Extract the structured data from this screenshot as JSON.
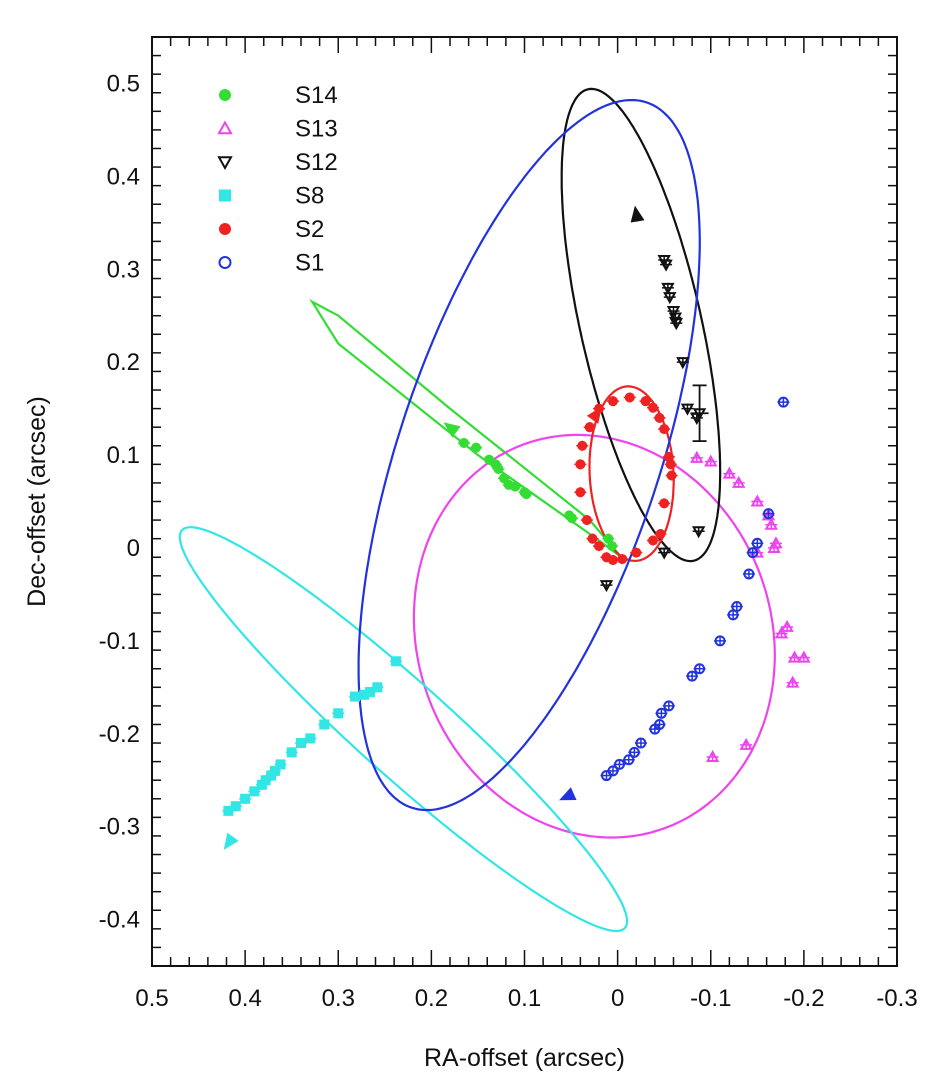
{
  "chart_data": {
    "type": "scatter",
    "title": "",
    "xlabel": "RA-offset (arcsec)",
    "ylabel": "Dec-offset (arcsec)",
    "xlim": [
      0.5,
      -0.3
    ],
    "ylim": [
      -0.45,
      0.55
    ],
    "x_ticks": [
      0.5,
      0.4,
      0.3,
      0.2,
      0.1,
      0,
      -0.1,
      -0.2,
      -0.3
    ],
    "x_tick_labels": [
      "0.5",
      "0.4",
      "0.3",
      "0.2",
      "0.1",
      "0",
      "-0.1",
      "-0.2",
      "-0.3"
    ],
    "y_ticks": [
      -0.4,
      -0.3,
      -0.2,
      -0.1,
      0,
      0.1,
      0.2,
      0.3,
      0.4,
      0.5
    ],
    "y_tick_labels": [
      "-0.4",
      "-0.3",
      "-0.2",
      "-0.1",
      "0",
      "0.1",
      "0.2",
      "0.3",
      "0.4",
      "0.5"
    ],
    "legend_position": "top-left",
    "series": [
      {
        "name": "S14",
        "color": "#33dd33",
        "marker": "circle-filled",
        "points": [
          [
            0.165,
            0.113
          ],
          [
            0.152,
            0.108
          ],
          [
            0.138,
            0.095
          ],
          [
            0.131,
            0.09
          ],
          [
            0.128,
            0.085
          ],
          [
            0.122,
            0.075
          ],
          [
            0.117,
            0.068
          ],
          [
            0.11,
            0.066
          ],
          [
            0.1,
            0.06
          ],
          [
            0.098,
            0.058
          ],
          [
            0.052,
            0.035
          ],
          [
            0.049,
            0.032
          ],
          [
            0.01,
            0.01
          ],
          [
            0.006,
            0.002
          ]
        ],
        "orbit": [
          [
            0.02,
            0.008
          ],
          [
            -0.004,
            -0.01
          ],
          [
            0.03,
            0.03
          ],
          [
            0.18,
            0.15
          ],
          [
            0.3,
            0.25
          ],
          [
            0.328,
            0.265
          ],
          [
            0.3,
            0.22
          ],
          [
            0.15,
            0.1
          ],
          [
            0.02,
            0.008
          ]
        ],
        "arrows": [
          {
            "at": [
              0.18,
              0.13
            ],
            "toward": [
              0.2,
              0.145
            ]
          }
        ]
      },
      {
        "name": "S13",
        "color": "#ee44ee",
        "marker": "triangle-open",
        "points": [
          [
            -0.085,
            0.097
          ],
          [
            -0.1,
            0.093
          ],
          [
            -0.12,
            0.08
          ],
          [
            -0.13,
            0.07
          ],
          [
            -0.15,
            0.05
          ],
          [
            -0.162,
            0.035
          ],
          [
            -0.165,
            0.025
          ],
          [
            -0.17,
            0.005
          ],
          [
            -0.168,
            0.0
          ],
          [
            -0.15,
            -0.005
          ],
          [
            -0.182,
            -0.085
          ],
          [
            -0.176,
            -0.092
          ],
          [
            -0.19,
            -0.118
          ],
          [
            -0.2,
            -0.118
          ],
          [
            -0.188,
            -0.145
          ],
          [
            -0.138,
            -0.212
          ],
          [
            -0.102,
            -0.225
          ]
        ],
        "orbit_ellipse": {
          "cx": 0.025,
          "cy": -0.095,
          "rx": 0.19,
          "ry": 0.22,
          "rot": -0.35
        }
      },
      {
        "name": "S12",
        "color": "#111111",
        "marker": "triangle-down-open",
        "points": [
          [
            -0.05,
            0.31
          ],
          [
            -0.052,
            0.305
          ],
          [
            -0.054,
            0.28
          ],
          [
            -0.056,
            0.27
          ],
          [
            -0.06,
            0.255
          ],
          [
            -0.062,
            0.248
          ],
          [
            -0.063,
            0.242
          ],
          [
            -0.07,
            0.2
          ],
          [
            -0.075,
            0.15
          ],
          [
            -0.085,
            0.14
          ],
          [
            -0.087,
            0.018
          ],
          [
            -0.05,
            -0.005
          ],
          [
            0.012,
            -0.04
          ]
        ],
        "error_bars": [
          [
            -0.088,
            0.145,
            0.03
          ]
        ],
        "orbit_ellipse": {
          "cx": -0.025,
          "cy": 0.24,
          "rx": 0.065,
          "ry": 0.26,
          "rot": -0.22
        },
        "arrows": [
          {
            "at": [
              -0.02,
              0.36
            ],
            "toward": [
              -0.015,
              0.39
            ]
          }
        ]
      },
      {
        "name": "S8",
        "color": "#33e6e6",
        "marker": "square-filled",
        "points": [
          [
            0.238,
            -0.122
          ],
          [
            0.258,
            -0.15
          ],
          [
            0.266,
            -0.155
          ],
          [
            0.272,
            -0.158
          ],
          [
            0.282,
            -0.16
          ],
          [
            0.3,
            -0.178
          ],
          [
            0.315,
            -0.19
          ],
          [
            0.33,
            -0.205
          ],
          [
            0.34,
            -0.21
          ],
          [
            0.35,
            -0.22
          ],
          [
            0.362,
            -0.233
          ],
          [
            0.368,
            -0.24
          ],
          [
            0.372,
            -0.245
          ],
          [
            0.378,
            -0.25
          ],
          [
            0.382,
            -0.255
          ],
          [
            0.39,
            -0.262
          ],
          [
            0.4,
            -0.27
          ],
          [
            0.41,
            -0.278
          ],
          [
            0.418,
            -0.283
          ]
        ],
        "orbit_ellipse": {
          "cx": 0.23,
          "cy": -0.195,
          "rx": 0.32,
          "ry": 0.05,
          "rot": 0.733
        },
        "arrows": [
          {
            "at": [
              0.418,
              -0.318
            ],
            "toward": [
              0.43,
              -0.335
            ]
          }
        ]
      },
      {
        "name": "S2",
        "color": "#ee2222",
        "marker": "circle-filled",
        "points": [
          [
            -0.013,
            0.162
          ],
          [
            -0.03,
            0.158
          ],
          [
            -0.038,
            0.151
          ],
          [
            -0.045,
            0.14
          ],
          [
            -0.05,
            0.128
          ],
          [
            -0.055,
            0.098
          ],
          [
            -0.057,
            0.09
          ],
          [
            -0.058,
            0.078
          ],
          [
            -0.05,
            0.048
          ],
          [
            -0.046,
            0.015
          ],
          [
            -0.038,
            0.008
          ],
          [
            -0.02,
            -0.005
          ],
          [
            -0.005,
            -0.012
          ],
          [
            0.005,
            -0.013
          ],
          [
            0.012,
            -0.01
          ],
          [
            0.02,
            0.002
          ],
          [
            0.027,
            0.01
          ],
          [
            0.033,
            0.03
          ],
          [
            0.04,
            0.06
          ],
          [
            0.04,
            0.09
          ],
          [
            0.038,
            0.11
          ],
          [
            0.03,
            0.13
          ],
          [
            0.02,
            0.15
          ],
          [
            0.005,
            0.158
          ]
        ],
        "orbit_ellipse": {
          "cx": -0.015,
          "cy": 0.08,
          "rx": 0.045,
          "ry": 0.094,
          "rot": -0.05
        },
        "arrows": [
          {
            "at": [
              0.022,
              0.145
            ],
            "toward": [
              0.015,
              0.155
            ]
          }
        ]
      },
      {
        "name": "S1",
        "color": "#2233dd",
        "marker": "circle-open",
        "points": [
          [
            -0.178,
            0.157
          ],
          [
            -0.162,
            0.037
          ],
          [
            -0.15,
            0.005
          ],
          [
            -0.145,
            -0.005
          ],
          [
            -0.141,
            -0.028
          ],
          [
            -0.128,
            -0.063
          ],
          [
            -0.124,
            -0.072
          ],
          [
            -0.11,
            -0.1
          ],
          [
            -0.088,
            -0.13
          ],
          [
            -0.08,
            -0.138
          ],
          [
            -0.055,
            -0.17
          ],
          [
            -0.047,
            -0.178
          ],
          [
            -0.045,
            -0.19
          ],
          [
            -0.04,
            -0.195
          ],
          [
            -0.025,
            -0.21
          ],
          [
            -0.018,
            -0.22
          ],
          [
            -0.012,
            -0.228
          ],
          [
            -0.002,
            -0.233
          ],
          [
            0.005,
            -0.24
          ],
          [
            0.012,
            -0.245
          ]
        ],
        "orbit_ellipse": {
          "cx": 0.095,
          "cy": 0.1,
          "rx": 0.4,
          "ry": 0.14,
          "rot": -1.25
        },
        "arrows": [
          {
            "at": [
              0.055,
              -0.268
            ],
            "toward": [
              0.075,
              -0.277
            ]
          }
        ]
      }
    ]
  }
}
